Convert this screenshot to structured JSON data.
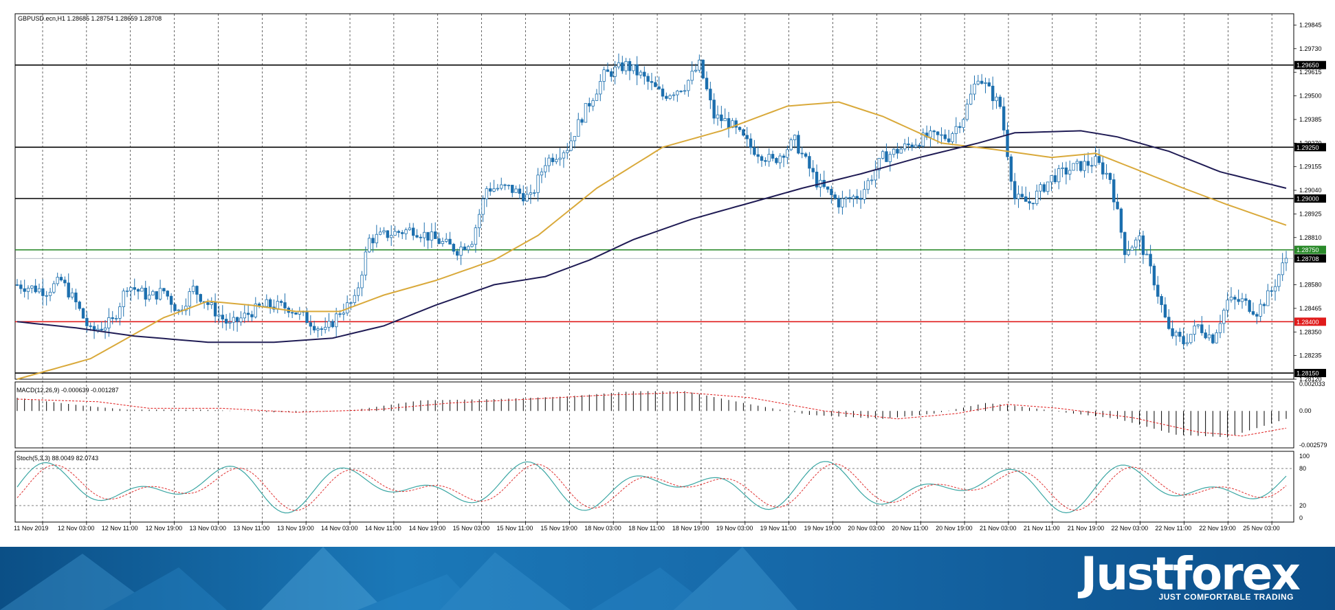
{
  "colors": {
    "candle": "#1c6fae",
    "ma_fast": "#d9a93a",
    "ma_slow": "#1f1b54",
    "signal_red": "#e01b1b",
    "level_green": "#2a8a2a",
    "level_black": "#000000",
    "stoch_main": "#3aa6a3",
    "stoch_signal": "#e03030"
  },
  "chart_data": [
    {
      "type": "candlestick",
      "symbol_header": "GBPUSD.ecn,H1  1.28685 1.28754 1.28659 1.28708",
      "yticks": [
        "1.29845",
        "1.29730",
        "1.29615",
        "1.29500",
        "1.29385",
        "1.29270",
        "1.29155",
        "1.29040",
        "1.28925",
        "1.28810",
        "1.28580",
        "1.28465",
        "1.28350",
        "1.28235",
        "1.28120"
      ],
      "ylim": [
        1.2812,
        1.299
      ],
      "x_labels": [
        "11 Nov 2019",
        "12 Nov 03:00",
        "12 Nov 11:00",
        "12 Nov 19:00",
        "13 Nov 03:00",
        "13 Nov 11:00",
        "13 Nov 19:00",
        "14 Nov 03:00",
        "14 Nov 11:00",
        "14 Nov 19:00",
        "15 Nov 03:00",
        "15 Nov 11:00",
        "15 Nov 19:00",
        "18 Nov 03:00",
        "18 Nov 11:00",
        "18 Nov 19:00",
        "19 Nov 03:00",
        "19 Nov 11:00",
        "19 Nov 19:00",
        "20 Nov 03:00",
        "20 Nov 11:00",
        "20 Nov 19:00",
        "21 Nov 03:00",
        "21 Nov 11:00",
        "21 Nov 19:00",
        "22 Nov 03:00",
        "22 Nov 11:00",
        "22 Nov 19:00",
        "25 Nov 03:00"
      ],
      "horizontal_levels": [
        {
          "value": 1.2965,
          "label": "1.29650",
          "color": "level_black"
        },
        {
          "value": 1.2925,
          "label": "1.29250",
          "color": "level_black"
        },
        {
          "value": 1.29,
          "label": "1.29000",
          "color": "level_black"
        },
        {
          "value": 1.2875,
          "label": "1.28750",
          "color": "level_green"
        },
        {
          "value": 1.284,
          "label": "1.28400",
          "color": "signal_red"
        },
        {
          "value": 1.2815,
          "label": "1.28150",
          "color": "level_black"
        }
      ],
      "current_price": {
        "value": 1.28708,
        "label": "1.28708"
      },
      "close_path": [
        [
          0,
          1.2858
        ],
        [
          8,
          1.2855
        ],
        [
          12,
          1.286
        ],
        [
          16,
          1.2849
        ],
        [
          20,
          1.2835
        ],
        [
          26,
          1.284
        ],
        [
          30,
          1.2858
        ],
        [
          36,
          1.2852
        ],
        [
          40,
          1.2855
        ],
        [
          44,
          1.2845
        ],
        [
          48,
          1.2856
        ],
        [
          54,
          1.2845
        ],
        [
          58,
          1.2838
        ],
        [
          64,
          1.2845
        ],
        [
          68,
          1.2848
        ],
        [
          74,
          1.2847
        ],
        [
          80,
          1.284
        ],
        [
          84,
          1.2835
        ],
        [
          88,
          1.2845
        ],
        [
          92,
          1.285
        ],
        [
          96,
          1.288
        ],
        [
          102,
          1.2883
        ],
        [
          108,
          1.2885
        ],
        [
          114,
          1.288
        ],
        [
          120,
          1.2875
        ],
        [
          124,
          1.288
        ],
        [
          128,
          1.2905
        ],
        [
          134,
          1.2905
        ],
        [
          140,
          1.29
        ],
        [
          144,
          1.2918
        ],
        [
          150,
          1.2925
        ],
        [
          154,
          1.294
        ],
        [
          160,
          1.296
        ],
        [
          166,
          1.2965
        ],
        [
          170,
          1.296
        ],
        [
          176,
          1.295
        ],
        [
          182,
          1.2955
        ],
        [
          186,
          1.2965
        ],
        [
          190,
          1.294
        ],
        [
          194,
          1.2937
        ],
        [
          200,
          1.2925
        ],
        [
          206,
          1.2918
        ],
        [
          212,
          1.2928
        ],
        [
          218,
          1.2908
        ],
        [
          224,
          1.2898
        ],
        [
          230,
          1.2902
        ],
        [
          236,
          1.292
        ],
        [
          242,
          1.2925
        ],
        [
          248,
          1.293
        ],
        [
          254,
          1.293
        ],
        [
          258,
          1.294
        ],
        [
          262,
          1.296
        ],
        [
          268,
          1.2945
        ],
        [
          272,
          1.29
        ],
        [
          276,
          1.2898
        ],
        [
          282,
          1.291
        ],
        [
          288,
          1.2915
        ],
        [
          294,
          1.2918
        ],
        [
          298,
          1.291
        ],
        [
          302,
          1.2875
        ],
        [
          306,
          1.288
        ],
        [
          310,
          1.286
        ],
        [
          314,
          1.2835
        ],
        [
          318,
          1.283
        ],
        [
          322,
          1.2838
        ],
        [
          326,
          1.2832
        ],
        [
          330,
          1.285
        ],
        [
          334,
          1.285
        ],
        [
          338,
          1.2845
        ],
        [
          342,
          1.2855
        ],
        [
          346,
          1.2871
        ]
      ],
      "ma_fast_path": [
        [
          0,
          1.2812
        ],
        [
          20,
          1.2822
        ],
        [
          40,
          1.2842
        ],
        [
          52,
          1.285
        ],
        [
          64,
          1.2848
        ],
        [
          76,
          1.2845
        ],
        [
          88,
          1.2845
        ],
        [
          100,
          1.2853
        ],
        [
          114,
          1.286
        ],
        [
          130,
          1.287
        ],
        [
          142,
          1.2882
        ],
        [
          158,
          1.2905
        ],
        [
          176,
          1.2925
        ],
        [
          192,
          1.2933
        ],
        [
          210,
          1.2945
        ],
        [
          224,
          1.2947
        ],
        [
          236,
          1.294
        ],
        [
          252,
          1.2927
        ],
        [
          266,
          1.2924
        ],
        [
          282,
          1.292
        ],
        [
          294,
          1.2922
        ],
        [
          304,
          1.2915
        ],
        [
          318,
          1.2905
        ],
        [
          330,
          1.2897
        ],
        [
          346,
          1.2887
        ]
      ],
      "ma_slow_path": [
        [
          0,
          1.284
        ],
        [
          16,
          1.2837
        ],
        [
          32,
          1.2833
        ],
        [
          52,
          1.283
        ],
        [
          70,
          1.283
        ],
        [
          86,
          1.2832
        ],
        [
          100,
          1.2838
        ],
        [
          114,
          1.2848
        ],
        [
          130,
          1.2858
        ],
        [
          144,
          1.2862
        ],
        [
          156,
          1.287
        ],
        [
          168,
          1.288
        ],
        [
          184,
          1.289
        ],
        [
          200,
          1.2898
        ],
        [
          214,
          1.2905
        ],
        [
          230,
          1.2912
        ],
        [
          246,
          1.292
        ],
        [
          262,
          1.2927
        ],
        [
          272,
          1.2932
        ],
        [
          290,
          1.2933
        ],
        [
          300,
          1.293
        ],
        [
          314,
          1.2923
        ],
        [
          328,
          1.2913
        ],
        [
          346,
          1.2905
        ]
      ]
    },
    {
      "type": "bar",
      "label": "MACD(12,26,9) -0.000639 -0.001287",
      "yticks": [
        "0.002033",
        "0.00",
        "-0.002579"
      ],
      "ylim": [
        -0.0028,
        0.0022
      ],
      "macd_path": [
        [
          0,
          0.001
        ],
        [
          18,
          0.0004
        ],
        [
          30,
          0.0001
        ],
        [
          50,
          0.0001
        ],
        [
          70,
          -0.0001
        ],
        [
          90,
          0.0
        ],
        [
          110,
          0.0008
        ],
        [
          130,
          0.0009
        ],
        [
          150,
          0.0011
        ],
        [
          168,
          0.0015
        ],
        [
          182,
          0.0015
        ],
        [
          200,
          0.0005
        ],
        [
          216,
          -0.0003
        ],
        [
          236,
          -0.0006
        ],
        [
          250,
          -0.0002
        ],
        [
          264,
          0.0006
        ],
        [
          272,
          0.0004
        ],
        [
          288,
          -0.0002
        ],
        [
          300,
          -0.0006
        ],
        [
          316,
          -0.0018
        ],
        [
          330,
          -0.002
        ],
        [
          346,
          -0.0006
        ]
      ],
      "signal_path": [
        [
          0,
          0.0009
        ],
        [
          22,
          0.0007
        ],
        [
          36,
          0.0002
        ],
        [
          56,
          0.0002
        ],
        [
          76,
          -0.0001
        ],
        [
          98,
          0.0001
        ],
        [
          118,
          0.0006
        ],
        [
          140,
          0.0009
        ],
        [
          160,
          0.0012
        ],
        [
          182,
          0.0014
        ],
        [
          200,
          0.001
        ],
        [
          220,
          0.0
        ],
        [
          240,
          -0.0006
        ],
        [
          256,
          -0.0002
        ],
        [
          270,
          0.0005
        ],
        [
          284,
          0.0002
        ],
        [
          304,
          -0.0005
        ],
        [
          322,
          -0.0016
        ],
        [
          334,
          -0.0019
        ],
        [
          346,
          -0.0013
        ]
      ]
    },
    {
      "type": "line",
      "label": "Stoch(5,3,3) 88.0049 82.0743",
      "yticks": [
        "100",
        "80",
        "20",
        "0"
      ],
      "ylim": [
        0,
        100
      ],
      "levels": [
        80,
        20
      ]
    }
  ],
  "branding": {
    "logo": "Justforex",
    "tagline": "JUST COMFORTABLE TRADING"
  }
}
